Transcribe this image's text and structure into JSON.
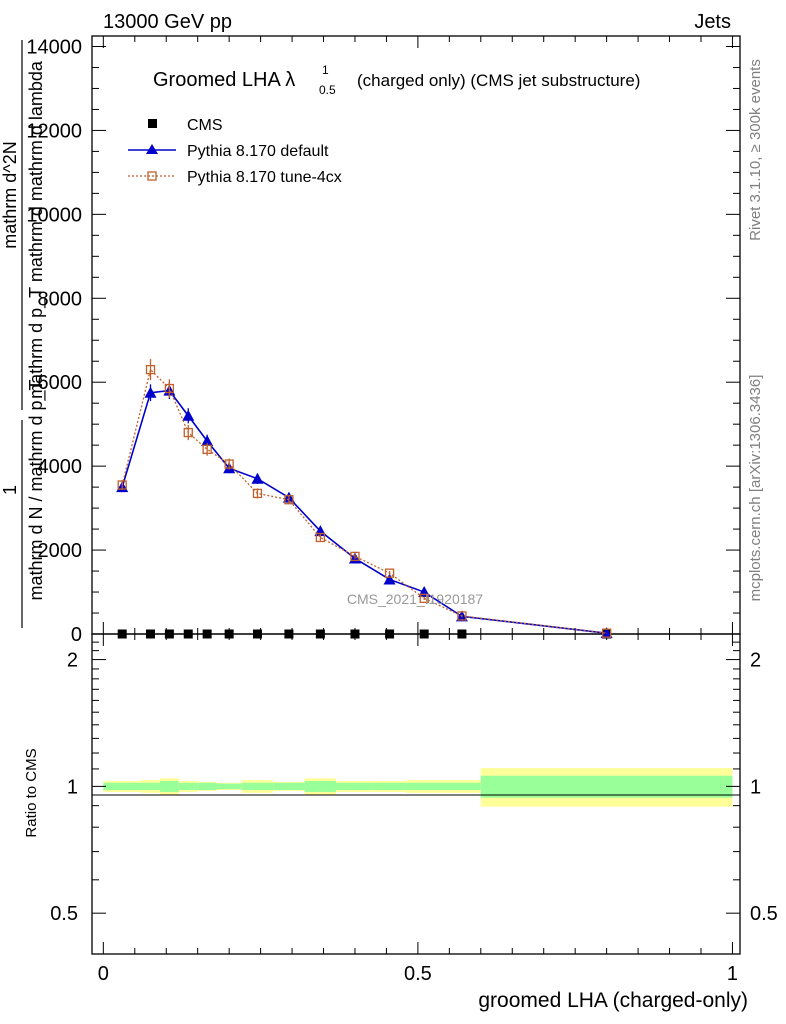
{
  "header": {
    "left": "13000 GeV pp",
    "right": "Jets"
  },
  "side_labels": {
    "rivet": "Rivet 3.1.10, ≥ 300k events",
    "mcplots": "mcplots.cern.ch [arXiv:1306.3436]"
  },
  "watermark": "CMS_2021_I1920187",
  "chart_data": {
    "type": "line",
    "title": "Groomed LHA λ¹₀.₅ (charged only) (CMS jet substructure)",
    "title_main": "Groomed LHA λ",
    "title_sup": "1",
    "title_sub": "0.5",
    "title_rest": "(charged only) (CMS jet substructure)",
    "xlabel": "groomed LHA (charged-only)",
    "ylabel_top_numerator": "1",
    "ylabel_top_denominator": "mathrm d N / mathrm d p_T",
    "ylabel_main_numerator": "mathrm d^2N",
    "ylabel_main_denominator": "mathrm d p_T mathrm d mathrm d lambda",
    "ratio_ylabel": "Ratio to CMS",
    "xlim": [
      0,
      1
    ],
    "ylim": [
      0,
      14000
    ],
    "ratio_ylim": [
      0.4,
      2.3
    ],
    "x_ticks": [
      "0",
      "0.5",
      "1"
    ],
    "y_ticks": [
      "0",
      "2000",
      "4000",
      "6000",
      "8000",
      "10000",
      "12000",
      "14000"
    ],
    "ratio_ticks": [
      "0.5",
      "1",
      "2"
    ],
    "legend_position": "top-left",
    "bins": [
      [
        0.0,
        0.06
      ],
      [
        0.06,
        0.09
      ],
      [
        0.09,
        0.12
      ],
      [
        0.12,
        0.15
      ],
      [
        0.15,
        0.18
      ],
      [
        0.18,
        0.22
      ],
      [
        0.22,
        0.27
      ],
      [
        0.27,
        0.32
      ],
      [
        0.32,
        0.37
      ],
      [
        0.37,
        0.43
      ],
      [
        0.43,
        0.48
      ],
      [
        0.48,
        0.54
      ],
      [
        0.54,
        0.6
      ],
      [
        0.6,
        1.0
      ]
    ],
    "series": [
      {
        "name": "CMS",
        "style": "data",
        "color": "#000000",
        "x": [
          0.03,
          0.075,
          0.105,
          0.135,
          0.165,
          0.2,
          0.245,
          0.295,
          0.345,
          0.4,
          0.455,
          0.51,
          0.57,
          0.8
        ],
        "values": [
          0,
          0,
          0,
          0,
          0,
          0,
          0,
          0,
          0,
          0,
          0,
          0,
          0,
          0
        ]
      },
      {
        "name": "Pythia 8.170 default",
        "style": "line-triangle",
        "color": "#0000cc",
        "x": [
          0.03,
          0.075,
          0.105,
          0.135,
          0.165,
          0.2,
          0.245,
          0.295,
          0.345,
          0.4,
          0.455,
          0.51,
          0.57,
          0.8
        ],
        "values": [
          3500,
          5750,
          5800,
          5200,
          4600,
          3950,
          3700,
          3250,
          2450,
          1800,
          1300,
          1000,
          420,
          20
        ],
        "errors": [
          120,
          200,
          200,
          180,
          150,
          120,
          120,
          110,
          80,
          60,
          50,
          40,
          30,
          5
        ]
      },
      {
        "name": "Pythia 8.170 tune-4cx",
        "style": "dotted-square",
        "color": "#c0602a",
        "x": [
          0.03,
          0.075,
          0.105,
          0.135,
          0.165,
          0.2,
          0.245,
          0.295,
          0.345,
          0.4,
          0.455,
          0.51,
          0.57,
          0.8
        ],
        "values": [
          3550,
          6300,
          5850,
          4800,
          4400,
          4050,
          3350,
          3200,
          2300,
          1850,
          1450,
          850,
          430,
          20
        ],
        "errors": [
          120,
          250,
          220,
          180,
          150,
          130,
          120,
          110,
          80,
          60,
          50,
          40,
          30,
          5
        ]
      }
    ],
    "ratio_bands": {
      "green_halfwidth": [
        0.02,
        0.02,
        0.03,
        0.02,
        0.02,
        0.015,
        0.02,
        0.02,
        0.03,
        0.02,
        0.02,
        0.02,
        0.02,
        0.06
      ],
      "yellow_halfwidth": [
        0.03,
        0.035,
        0.045,
        0.03,
        0.025,
        0.02,
        0.035,
        0.025,
        0.045,
        0.03,
        0.03,
        0.035,
        0.035,
        0.105
      ],
      "green_color": "#99ff99",
      "yellow_color": "#ffff99"
    }
  }
}
